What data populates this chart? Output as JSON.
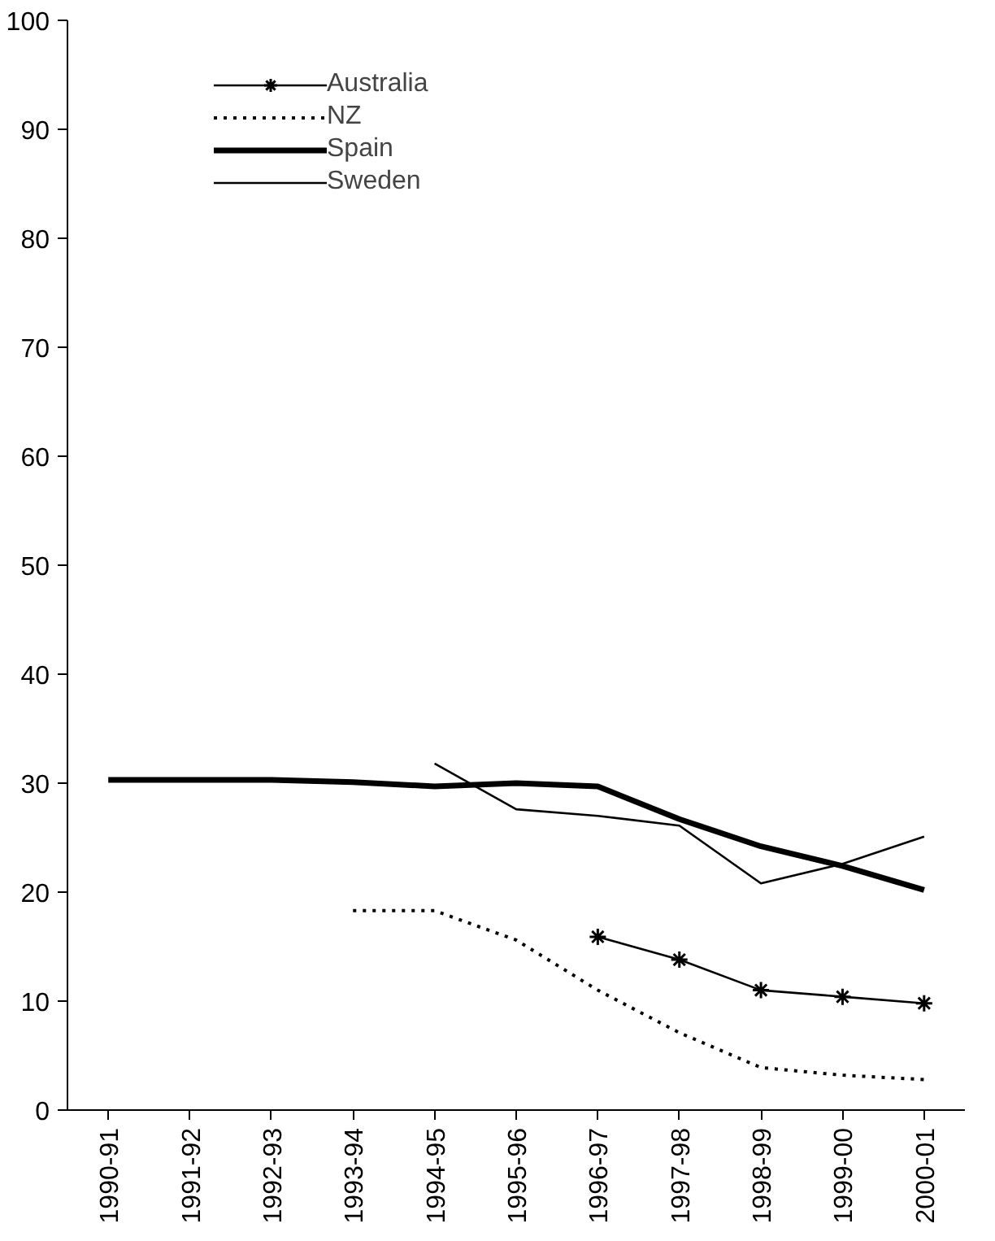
{
  "chart_data": {
    "type": "line",
    "categories": [
      "1990-91",
      "1991-92",
      "1992-93",
      "1993-94",
      "1994-95",
      "1995-96",
      "1996-97",
      "1997-98",
      "1998-99",
      "1999-00",
      "2000-01"
    ],
    "series": [
      {
        "name": "Australia",
        "color": "#000000",
        "marker": "cross",
        "line_style": "solid",
        "values": [
          null,
          null,
          null,
          null,
          null,
          null,
          15.9,
          13.8,
          11.0,
          10.4,
          9.8
        ]
      },
      {
        "name": "NZ",
        "color": "#000000",
        "marker": "none",
        "line_style": "dotted",
        "values": [
          null,
          null,
          null,
          18.3,
          18.3,
          15.6,
          11.0,
          7.1,
          3.9,
          3.2,
          2.8
        ]
      },
      {
        "name": "Spain",
        "color": "#000000",
        "marker": "none",
        "line_style": "solid",
        "values": [
          30.3,
          30.3,
          30.3,
          30.1,
          29.7,
          30.0,
          29.7,
          26.7,
          24.2,
          22.4,
          20.2
        ]
      },
      {
        "name": "Sweden",
        "color": "#000000",
        "marker": "none",
        "line_style": "solid",
        "values": [
          null,
          null,
          null,
          null,
          31.8,
          27.6,
          27.0,
          26.1,
          20.8,
          22.6,
          25.1
        ]
      }
    ],
    "ylim": [
      0,
      100
    ],
    "yticks": [
      0,
      10,
      20,
      30,
      40,
      50,
      60,
      70,
      80,
      90,
      100
    ],
    "grid": false,
    "legend": "top left"
  }
}
